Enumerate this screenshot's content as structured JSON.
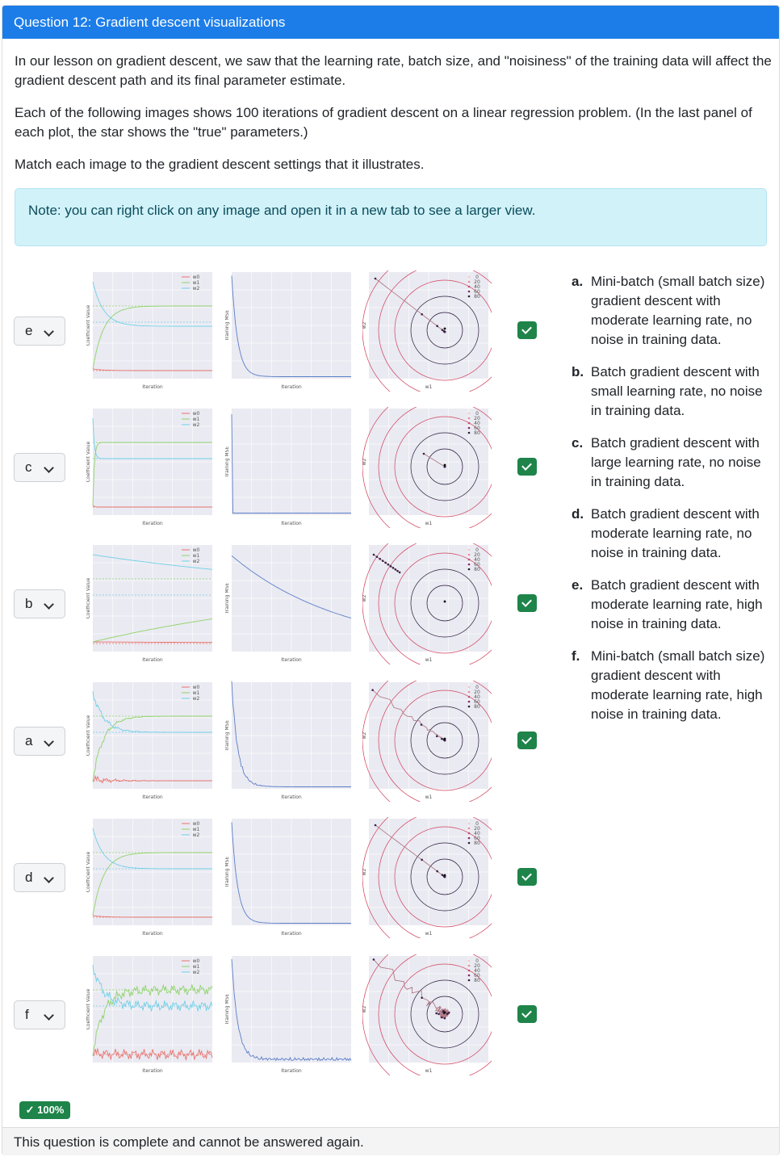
{
  "header": {
    "title": "Question 12: Gradient descent visualizations"
  },
  "intro": {
    "p1": "In our lesson on gradient descent, we saw that the learning rate, batch size, and \"noisiness\" of the training data will affect the gradient descent path and its final parameter estimate.",
    "p2": "Each of the following images shows 100 iterations of gradient descent on a linear regression problem. (In the last panel of each plot, the star shows the \"true\" parameters.)",
    "p3": "Match each image to the gradient descent settings that it illustrates."
  },
  "note": "Note: you can right click on any image and open it in a new tab to see a larger view.",
  "rows": [
    {
      "answer": "e",
      "kind": "heavy"
    },
    {
      "answer": "c",
      "kind": "fast"
    },
    {
      "answer": "b",
      "kind": "slow"
    },
    {
      "answer": "a",
      "kind": "minibatch"
    },
    {
      "answer": "d",
      "kind": "smooth"
    },
    {
      "answer": "f",
      "kind": "noisy"
    }
  ],
  "plot_labels": {
    "iteration": "Iteration",
    "coef": "Coefficient Value",
    "mse": "Training MSE",
    "w1": "w1",
    "w2": "w2",
    "legend": [
      "w0",
      "w1",
      "w2"
    ],
    "iter_legend": [
      "0",
      "20",
      "40",
      "60",
      "80"
    ]
  },
  "options": [
    {
      "letter": "a.",
      "text": "Mini-batch (small batch size) gradient descent with moderate learning rate, no noise in training data."
    },
    {
      "letter": "b.",
      "text": "Batch gradient descent with small learning rate, no noise in training data."
    },
    {
      "letter": "c.",
      "text": "Batch gradient descent with large learning rate, no noise in training data."
    },
    {
      "letter": "d.",
      "text": "Batch gradient descent with moderate learning rate, no noise in training data."
    },
    {
      "letter": "e.",
      "text": "Batch gradient descent with moderate learning rate, high noise in training data."
    },
    {
      "letter": "f.",
      "text": "Mini-batch (small batch size) gradient descent with moderate learning rate, high noise in training data."
    }
  ],
  "score": "✓ 100%",
  "footer": "This question is complete and cannot be answered again.",
  "colors": {
    "header": "#1c7de8",
    "success": "#1e8449",
    "note_bg": "#d1f2f9",
    "w0": "#e8736c",
    "w1": "#8fd36a",
    "w2": "#6fd0e6",
    "mse": "#5b7fc7"
  }
}
